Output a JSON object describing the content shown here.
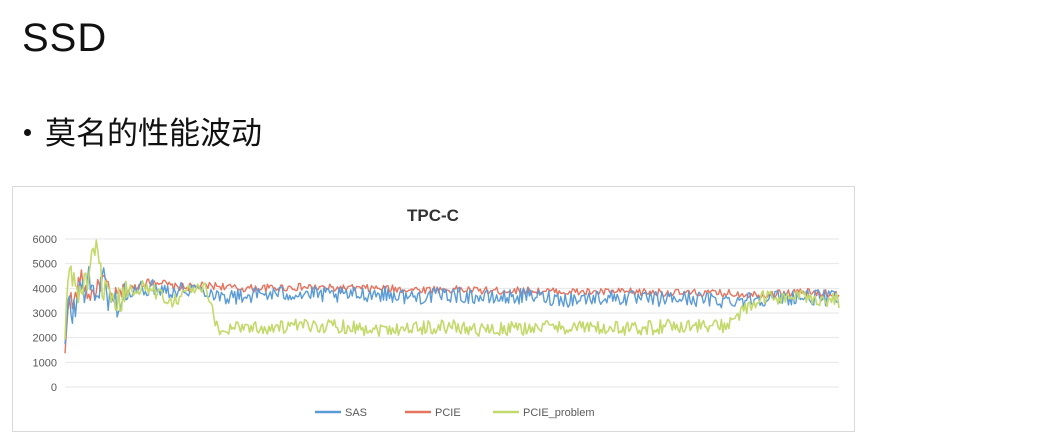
{
  "slide": {
    "title": "SSD",
    "bullet": "莫名的性能波动"
  },
  "chart_data": {
    "type": "line",
    "title": "TPC-C",
    "xlabel": "",
    "ylabel": "",
    "ylim": [
      0,
      6000
    ],
    "yticks": [
      0,
      1000,
      2000,
      3000,
      4000,
      5000,
      6000
    ],
    "x_range": [
      0,
      100
    ],
    "grid": "horizontal",
    "legend_position": "bottom",
    "colors": {
      "sas": "#5b9bd5",
      "pcie": "#e5735e",
      "pcie_problem": "#c3d96b"
    },
    "series": [
      {
        "name": "SAS",
        "key": "sas",
        "x": [
          0,
          0.5,
          1,
          2,
          3,
          4,
          5,
          6,
          8,
          10,
          12,
          14,
          16,
          18,
          20,
          22,
          25,
          30,
          35,
          40,
          45,
          50,
          55,
          60,
          65,
          70,
          75,
          80,
          85,
          90,
          95,
          100
        ],
        "values": [
          1500,
          3500,
          2900,
          4000,
          4200,
          3800,
          4300,
          3300,
          3700,
          4000,
          4050,
          3900,
          4000,
          3950,
          3700,
          3650,
          3750,
          3800,
          3700,
          3800,
          3650,
          3750,
          3600,
          3700,
          3550,
          3650,
          3550,
          3600,
          3500,
          3600,
          3650,
          3600
        ],
        "noise": 320
      },
      {
        "name": "PCIE",
        "key": "pcie",
        "x": [
          0,
          0.5,
          1,
          2,
          3,
          4,
          5,
          6,
          8,
          10,
          12,
          14,
          16,
          18,
          20,
          22,
          25,
          30,
          35,
          40,
          45,
          50,
          55,
          60,
          65,
          70,
          75,
          80,
          85,
          90,
          95,
          100
        ],
        "values": [
          1200,
          4000,
          3200,
          4500,
          3700,
          3900,
          4400,
          3600,
          3900,
          4200,
          4300,
          4050,
          4050,
          4100,
          4100,
          4000,
          4000,
          4050,
          4000,
          4000,
          3950,
          3950,
          3900,
          3900,
          3850,
          3850,
          3850,
          3800,
          3800,
          3750,
          3850,
          3750
        ],
        "noise": 160
      },
      {
        "name": "PCIE_problem",
        "key": "pcie_problem",
        "x": [
          0,
          0.5,
          1,
          2,
          3,
          4,
          5,
          6,
          8,
          10,
          12,
          14,
          16,
          18,
          20,
          22,
          25,
          30,
          35,
          40,
          45,
          50,
          55,
          60,
          65,
          70,
          75,
          80,
          85,
          90,
          95,
          100
        ],
        "values": [
          1800,
          5100,
          4300,
          3800,
          4500,
          5400,
          4000,
          3100,
          3800,
          4100,
          3800,
          3500,
          3950,
          4000,
          2200,
          2500,
          2400,
          2450,
          2500,
          2350,
          2400,
          2450,
          2300,
          2400,
          2450,
          2350,
          2400,
          2500,
          2450,
          3600,
          3650,
          3500
        ],
        "noise": 300
      }
    ]
  }
}
